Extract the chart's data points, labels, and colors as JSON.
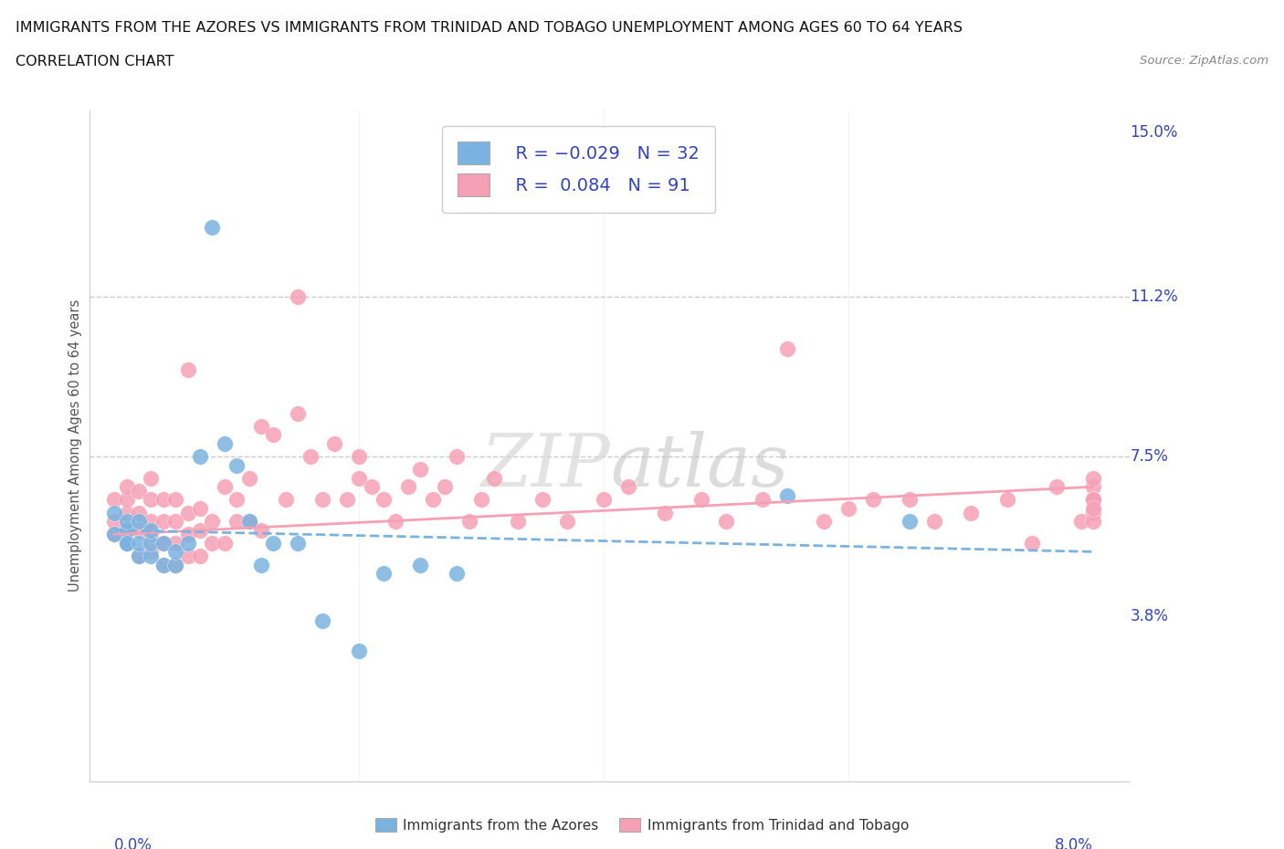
{
  "title_line1": "IMMIGRANTS FROM THE AZORES VS IMMIGRANTS FROM TRINIDAD AND TOBAGO UNEMPLOYMENT AMONG AGES 60 TO 64 YEARS",
  "title_line2": "CORRELATION CHART",
  "source_text": "Source: ZipAtlas.com",
  "watermark": "ZIPatlas",
  "color_azores": "#7ab3e0",
  "color_trinidad": "#f5a0b5",
  "xmin": 0.0,
  "xmax": 0.08,
  "ymin": 0.0,
  "ymax": 0.15,
  "gridline_y": [
    0.075,
    0.112
  ],
  "az_x": [
    0.0,
    0.0,
    0.001,
    0.001,
    0.001,
    0.001,
    0.002,
    0.002,
    0.002,
    0.003,
    0.003,
    0.003,
    0.004,
    0.004,
    0.005,
    0.005,
    0.006,
    0.007,
    0.008,
    0.009,
    0.01,
    0.011,
    0.012,
    0.013,
    0.015,
    0.017,
    0.02,
    0.022,
    0.025,
    0.028,
    0.055,
    0.065
  ],
  "az_y": [
    0.057,
    0.062,
    0.055,
    0.058,
    0.06,
    0.055,
    0.052,
    0.055,
    0.06,
    0.052,
    0.055,
    0.058,
    0.05,
    0.055,
    0.05,
    0.053,
    0.055,
    0.075,
    0.128,
    0.078,
    0.073,
    0.06,
    0.05,
    0.055,
    0.055,
    0.037,
    0.03,
    0.048,
    0.05,
    0.048,
    0.066,
    0.06
  ],
  "tt_x": [
    0.0,
    0.0,
    0.0,
    0.001,
    0.001,
    0.001,
    0.001,
    0.001,
    0.002,
    0.002,
    0.002,
    0.002,
    0.003,
    0.003,
    0.003,
    0.003,
    0.003,
    0.004,
    0.004,
    0.004,
    0.004,
    0.005,
    0.005,
    0.005,
    0.005,
    0.006,
    0.006,
    0.006,
    0.006,
    0.007,
    0.007,
    0.007,
    0.008,
    0.008,
    0.009,
    0.009,
    0.01,
    0.01,
    0.011,
    0.011,
    0.012,
    0.012,
    0.013,
    0.014,
    0.015,
    0.015,
    0.016,
    0.017,
    0.018,
    0.019,
    0.02,
    0.02,
    0.021,
    0.022,
    0.023,
    0.024,
    0.025,
    0.026,
    0.027,
    0.028,
    0.029,
    0.03,
    0.031,
    0.033,
    0.035,
    0.037,
    0.04,
    0.042,
    0.045,
    0.048,
    0.05,
    0.053,
    0.055,
    0.058,
    0.06,
    0.062,
    0.065,
    0.067,
    0.07,
    0.073,
    0.075,
    0.077,
    0.079,
    0.08,
    0.08,
    0.08,
    0.08,
    0.08,
    0.08,
    0.08,
    0.08
  ],
  "tt_y": [
    0.057,
    0.06,
    0.065,
    0.055,
    0.058,
    0.062,
    0.065,
    0.068,
    0.052,
    0.058,
    0.062,
    0.067,
    0.053,
    0.057,
    0.06,
    0.065,
    0.07,
    0.05,
    0.055,
    0.06,
    0.065,
    0.05,
    0.055,
    0.06,
    0.065,
    0.052,
    0.057,
    0.062,
    0.095,
    0.052,
    0.058,
    0.063,
    0.055,
    0.06,
    0.055,
    0.068,
    0.06,
    0.065,
    0.06,
    0.07,
    0.058,
    0.082,
    0.08,
    0.065,
    0.085,
    0.112,
    0.075,
    0.065,
    0.078,
    0.065,
    0.07,
    0.075,
    0.068,
    0.065,
    0.06,
    0.068,
    0.072,
    0.065,
    0.068,
    0.075,
    0.06,
    0.065,
    0.07,
    0.06,
    0.065,
    0.06,
    0.065,
    0.068,
    0.062,
    0.065,
    0.06,
    0.065,
    0.1,
    0.06,
    0.063,
    0.065,
    0.065,
    0.06,
    0.062,
    0.065,
    0.055,
    0.068,
    0.06,
    0.062,
    0.068,
    0.06,
    0.065,
    0.07,
    0.065,
    0.065,
    0.063
  ],
  "az_trend_x": [
    0.0,
    0.08
  ],
  "az_trend_y": [
    0.058,
    0.053
  ],
  "tt_trend_x": [
    0.0,
    0.08
  ],
  "tt_trend_y": [
    0.057,
    0.068
  ]
}
